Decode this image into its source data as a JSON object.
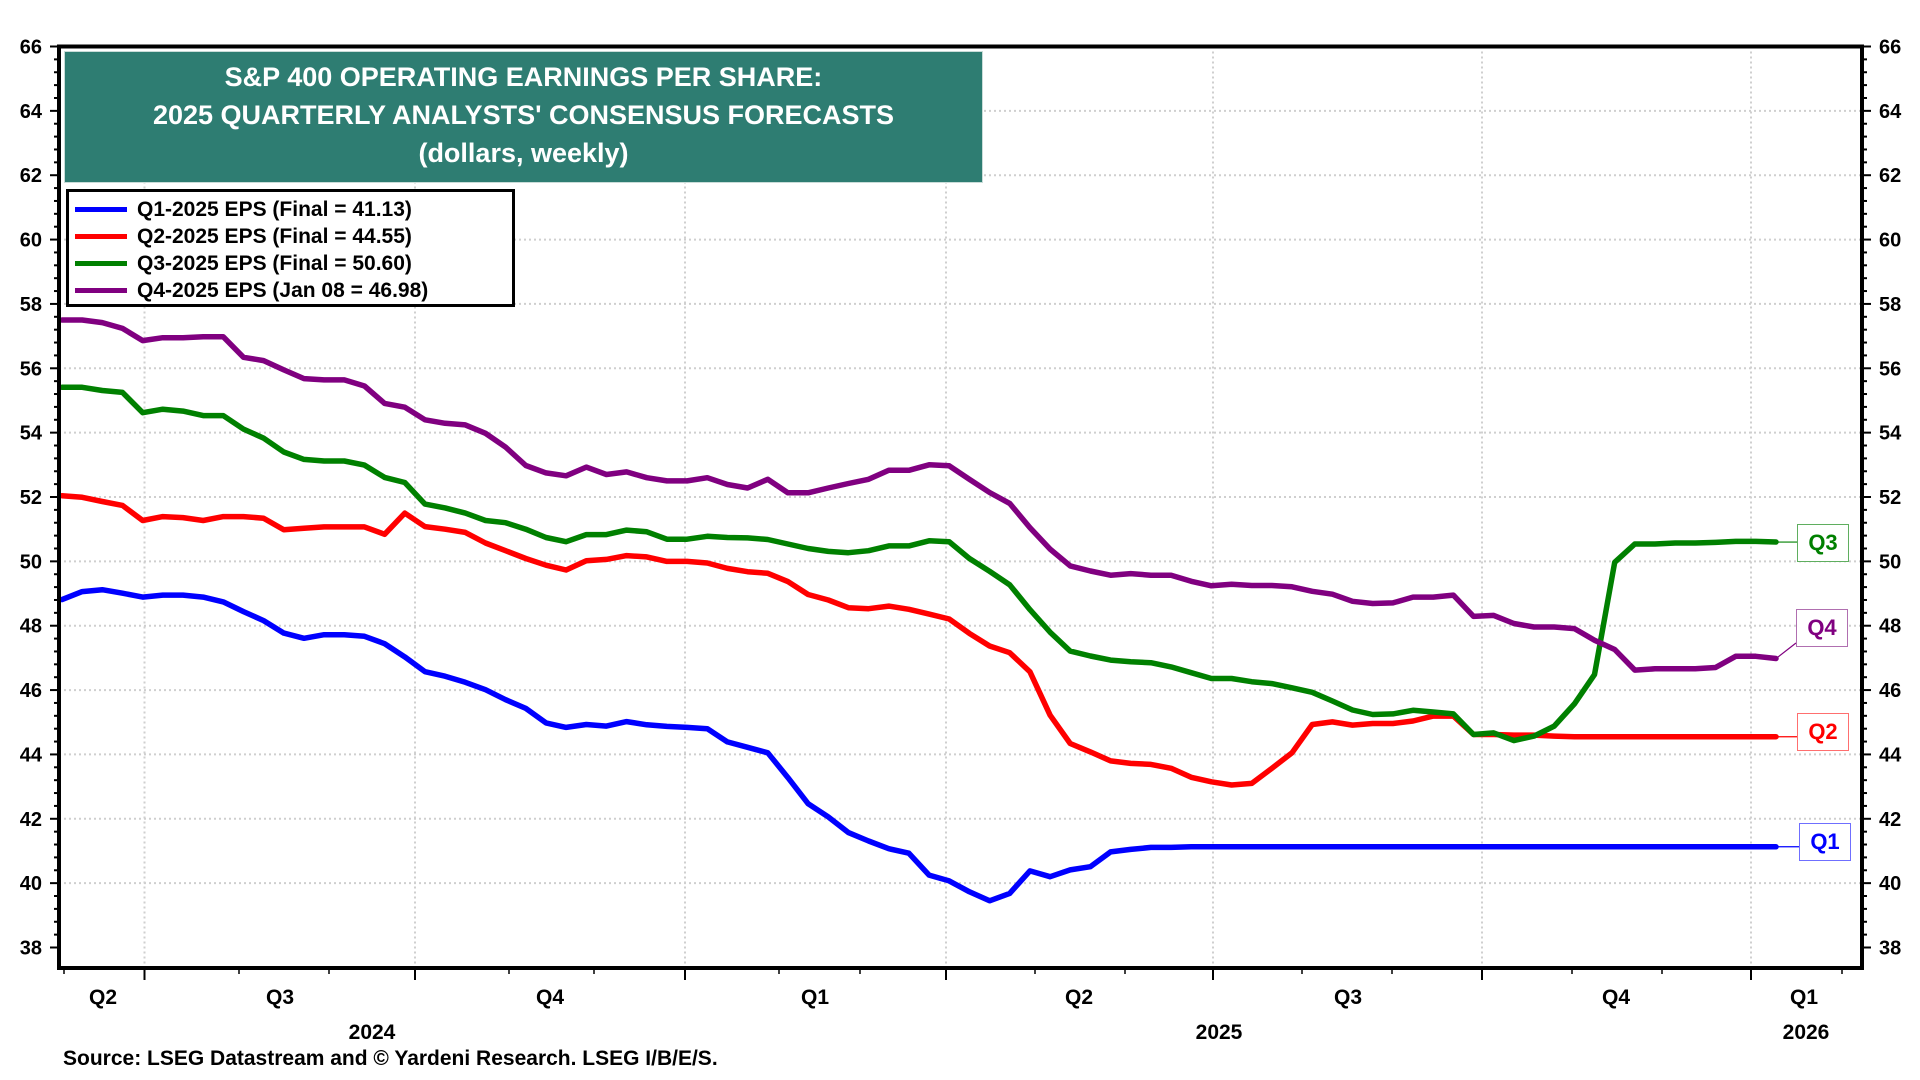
{
  "title": {
    "line1": "S&P 400 OPERATING EARNINGS PER SHARE:",
    "line2": "2025 QUARTERLY ANALYSTS' CONSENSUS FORECASTS",
    "line3": "(dollars, weekly)"
  },
  "source": "Source: LSEG Datastream and © Yardeni Research. LSEG I/B/E/S.",
  "legend": [
    {
      "label": "Q1-2025 EPS (Final = 41.13)",
      "color": "#0000ff"
    },
    {
      "label": "Q2-2025 EPS (Final = 44.55)",
      "color": "#ff0000"
    },
    {
      "label": "Q3-2025 EPS (Final = 50.60)",
      "color": "#008000"
    },
    {
      "label": "Q4-2025 EPS (Jan 08 = 46.98)",
      "color": "#800080"
    }
  ],
  "end_labels": [
    {
      "text": "Q3",
      "color": "#008000",
      "border": "#5fae5f"
    },
    {
      "text": "Q4",
      "color": "#800080",
      "border": "#b06fb0"
    },
    {
      "text": "Q2",
      "color": "#ff0000",
      "border": "#ff6f6f"
    },
    {
      "text": "Q1",
      "color": "#0000ff",
      "border": "#6f6fff"
    }
  ],
  "title_box_color": "#2e7d72",
  "chart_data": {
    "type": "line",
    "title": "S&P 400 OPERATING EARNINGS PER SHARE: 2025 QUARTERLY ANALYSTS' CONSENSUS FORECASTS (dollars, weekly)",
    "xlabel": "",
    "ylabel": "dollars",
    "ylim": [
      38,
      66
    ],
    "yticks": [
      38,
      40,
      42,
      44,
      46,
      48,
      50,
      52,
      54,
      56,
      58,
      60,
      62,
      64,
      66
    ],
    "y_axis_sides": "left-and-right",
    "grid": true,
    "x_range": {
      "start": "2024-06 (early)",
      "end": "2026-01-08",
      "frequency": "weekly",
      "points": 86
    },
    "x_quarter_labels": [
      {
        "label": "Q2",
        "year": "2024"
      },
      {
        "label": "Q3",
        "year": "2024"
      },
      {
        "label": "Q4",
        "year": "2024"
      },
      {
        "label": "Q1",
        "year": "2025"
      },
      {
        "label": "Q2",
        "year": "2025"
      },
      {
        "label": "Q3",
        "year": "2025"
      },
      {
        "label": "Q4",
        "year": "2025"
      },
      {
        "label": "Q1",
        "year": "2026"
      }
    ],
    "x_year_labels": [
      "2024",
      "2025",
      "2026"
    ],
    "legend_position": "top-left",
    "series": [
      {
        "name": "Q1-2025 EPS (Final = 41.13)",
        "short": "Q1",
        "color": "#0000ff",
        "values": [
          48.81,
          49.06,
          49.12,
          49.01,
          48.89,
          48.95,
          48.95,
          48.89,
          48.74,
          48.44,
          48.16,
          47.77,
          47.61,
          47.72,
          47.72,
          47.67,
          47.44,
          47.03,
          46.57,
          46.43,
          46.24,
          46.01,
          45.7,
          45.43,
          44.98,
          44.84,
          44.93,
          44.88,
          45.02,
          44.92,
          44.87,
          44.84,
          44.8,
          44.39,
          44.22,
          44.05,
          43.28,
          42.47,
          42.06,
          41.57,
          41.31,
          41.07,
          40.93,
          40.25,
          40.07,
          39.73,
          39.45,
          39.68,
          40.38,
          40.2,
          40.41,
          40.51,
          40.97,
          41.05,
          41.11,
          41.11,
          41.13,
          41.13,
          41.13,
          41.13,
          41.13,
          41.13,
          41.13,
          41.13,
          41.13,
          41.13,
          41.13,
          41.13,
          41.13,
          41.13,
          41.13,
          41.13,
          41.13,
          41.13,
          41.13,
          41.13,
          41.13,
          41.13,
          41.13,
          41.13,
          41.13,
          41.13,
          41.13,
          41.13,
          41.13,
          41.13
        ]
      },
      {
        "name": "Q2-2025 EPS (Final = 44.55)",
        "short": "Q2",
        "color": "#ff0000",
        "values": [
          52.04,
          51.99,
          51.86,
          51.74,
          51.27,
          51.39,
          51.36,
          51.27,
          51.39,
          51.39,
          51.34,
          50.98,
          51.03,
          51.07,
          51.07,
          51.07,
          50.84,
          51.5,
          51.08,
          51.0,
          50.9,
          50.57,
          50.33,
          50.09,
          49.88,
          49.73,
          50.02,
          50.06,
          50.18,
          50.14,
          50.0,
          50.0,
          49.95,
          49.78,
          49.68,
          49.63,
          49.37,
          48.97,
          48.8,
          48.56,
          48.53,
          48.61,
          48.51,
          48.36,
          48.21,
          47.76,
          47.37,
          47.16,
          46.57,
          45.22,
          44.34,
          44.08,
          43.8,
          43.72,
          43.69,
          43.57,
          43.29,
          43.15,
          43.05,
          43.1,
          43.57,
          44.05,
          44.93,
          45.01,
          44.91,
          44.96,
          44.96,
          45.04,
          45.19,
          45.19,
          44.62,
          44.62,
          44.6,
          44.6,
          44.57,
          44.55,
          44.55,
          44.55,
          44.55,
          44.55,
          44.55,
          44.55,
          44.55,
          44.55,
          44.55,
          44.55
        ]
      },
      {
        "name": "Q3-2025 EPS (Final = 50.60)",
        "short": "Q3",
        "color": "#008000",
        "values": [
          55.41,
          55.41,
          55.31,
          55.25,
          54.62,
          54.73,
          54.67,
          54.53,
          54.53,
          54.11,
          53.83,
          53.4,
          53.17,
          53.12,
          53.12,
          52.99,
          52.61,
          52.45,
          51.78,
          51.66,
          51.5,
          51.27,
          51.2,
          51.0,
          50.74,
          50.61,
          50.83,
          50.83,
          50.97,
          50.92,
          50.69,
          50.69,
          50.78,
          50.74,
          50.73,
          50.68,
          50.54,
          50.4,
          50.31,
          50.27,
          50.33,
          50.48,
          50.48,
          50.64,
          50.61,
          50.09,
          49.69,
          49.27,
          48.5,
          47.8,
          47.21,
          47.06,
          46.93,
          46.88,
          46.85,
          46.72,
          46.54,
          46.36,
          46.36,
          46.26,
          46.2,
          46.07,
          45.93,
          45.66,
          45.38,
          45.24,
          45.26,
          45.37,
          45.32,
          45.26,
          44.62,
          44.67,
          44.43,
          44.57,
          44.88,
          45.57,
          46.48,
          49.97,
          50.54,
          50.54,
          50.57,
          50.57,
          50.59,
          50.62,
          50.62,
          50.6
        ]
      },
      {
        "name": "Q4-2025 EPS (Jan 08 = 46.98)",
        "short": "Q4",
        "color": "#800080",
        "values": [
          57.5,
          57.5,
          57.42,
          57.24,
          56.86,
          56.95,
          56.95,
          56.98,
          56.98,
          56.34,
          56.24,
          55.95,
          55.68,
          55.64,
          55.64,
          55.45,
          54.91,
          54.79,
          54.4,
          54.29,
          54.24,
          53.98,
          53.55,
          52.98,
          52.75,
          52.66,
          52.93,
          52.7,
          52.78,
          52.6,
          52.5,
          52.5,
          52.6,
          52.39,
          52.28,
          52.55,
          52.13,
          52.13,
          52.28,
          52.42,
          52.55,
          52.83,
          52.83,
          53.0,
          52.97,
          52.55,
          52.14,
          51.8,
          51.05,
          50.38,
          49.86,
          49.7,
          49.57,
          49.62,
          49.57,
          49.57,
          49.38,
          49.24,
          49.29,
          49.25,
          49.25,
          49.21,
          49.07,
          48.98,
          48.76,
          48.69,
          48.71,
          48.89,
          48.89,
          48.95,
          48.29,
          48.32,
          48.07,
          47.96,
          47.96,
          47.91,
          47.55,
          47.26,
          46.62,
          46.66,
          46.66,
          46.66,
          46.7,
          47.05,
          47.05,
          46.98
        ]
      }
    ]
  }
}
